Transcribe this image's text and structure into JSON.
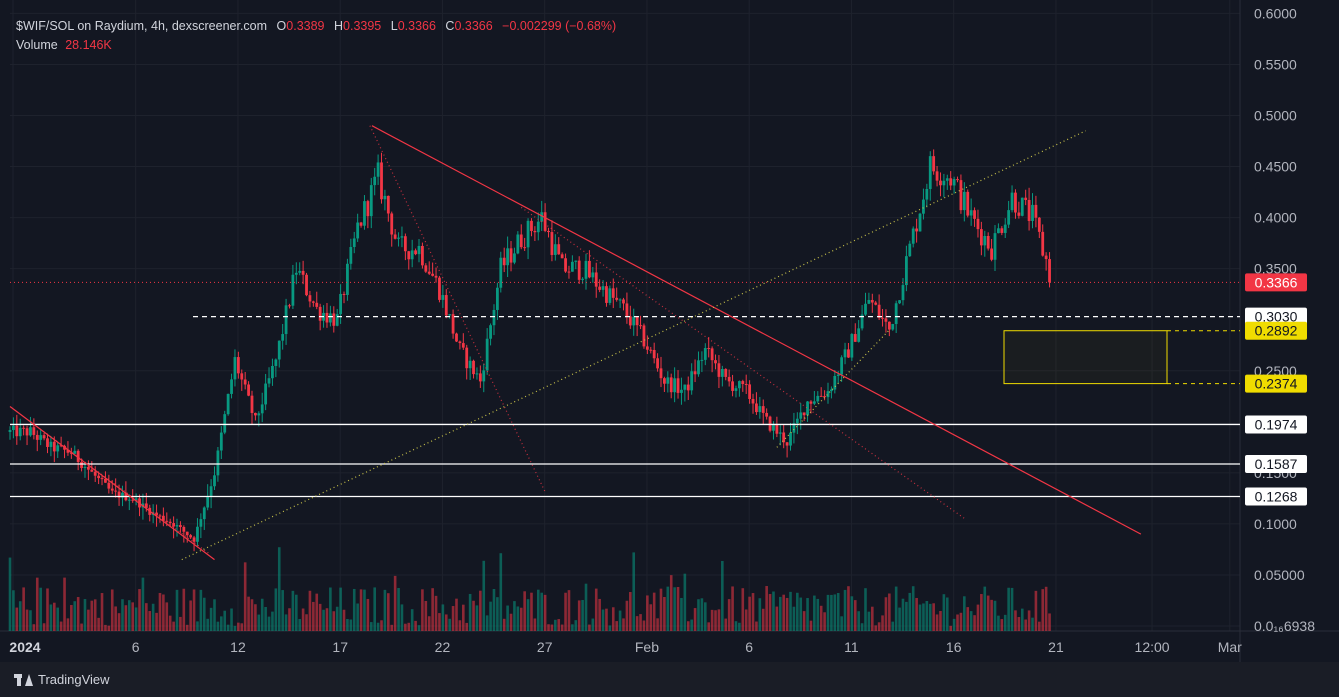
{
  "legend": {
    "symbol": "$WIF/SOL on Raydium, 4h, dexscreener.com",
    "open_label": "O",
    "open_value": "0.3389",
    "high_label": "H",
    "high_value": "0.3395",
    "low_label": "L",
    "low_value": "0.3366",
    "close_label": "C",
    "close_value": "0.3366",
    "change": "−0.002299 (−0.68%)",
    "volume_label": "Volume",
    "volume_value": "28.146K"
  },
  "footer": {
    "brand": "TradingView"
  },
  "colors": {
    "background": "#131722",
    "grid": "#1e222d",
    "up": "#089981",
    "down": "#f23645",
    "text": "#b2b5be",
    "trendline": "#f23645",
    "support_line": "#ffffff",
    "zone": "#f0dc00"
  },
  "chart_data": {
    "type": "candlestick",
    "title": "$WIF/SOL on Raydium, 4h, dexscreener.com",
    "ylim": [
      0.0,
      0.6
    ],
    "y_ticks": [
      "0.6000",
      "0.5500",
      "0.5000",
      "0.4500",
      "0.4000",
      "0.3500",
      "0.2500",
      "0.1500",
      "0.1000",
      "0.05000",
      "0.0₁₆6938"
    ],
    "x_ticks": [
      "2024",
      "6",
      "12",
      "17",
      "22",
      "27",
      "Feb",
      "6",
      "11",
      "16",
      "21",
      "12:00",
      "Mar"
    ],
    "price_path": [
      [
        1,
        0.19
      ],
      [
        2,
        0.175
      ],
      [
        3,
        0.17
      ],
      [
        4,
        0.15
      ],
      [
        5,
        0.13
      ],
      [
        6,
        0.125
      ],
      [
        7,
        0.11
      ],
      [
        8,
        0.1
      ],
      [
        9,
        0.085
      ],
      [
        10,
        0.15
      ],
      [
        11,
        0.26
      ],
      [
        12,
        0.2
      ],
      [
        13,
        0.26
      ],
      [
        14,
        0.35
      ],
      [
        15,
        0.31
      ],
      [
        16,
        0.3
      ],
      [
        17,
        0.39
      ],
      [
        18,
        0.44
      ],
      [
        19,
        0.37
      ],
      [
        20,
        0.37
      ],
      [
        21,
        0.33
      ],
      [
        22,
        0.27
      ],
      [
        23,
        0.24
      ],
      [
        24,
        0.35
      ],
      [
        25,
        0.38
      ],
      [
        26,
        0.4
      ],
      [
        27,
        0.35
      ],
      [
        28,
        0.35
      ],
      [
        29,
        0.33
      ],
      [
        30,
        0.31
      ],
      [
        31,
        0.28
      ],
      [
        32,
        0.24
      ],
      [
        33,
        0.23
      ],
      [
        34,
        0.27
      ],
      [
        35,
        0.24
      ],
      [
        36,
        0.23
      ],
      [
        37,
        0.2
      ],
      [
        38,
        0.18
      ],
      [
        39,
        0.22
      ],
      [
        40,
        0.23
      ],
      [
        41,
        0.27
      ],
      [
        42,
        0.32
      ],
      [
        43,
        0.29
      ],
      [
        44,
        0.37
      ],
      [
        45,
        0.45
      ],
      [
        46,
        0.44
      ],
      [
        47,
        0.4
      ],
      [
        48,
        0.37
      ],
      [
        49,
        0.42
      ],
      [
        50,
        0.4
      ],
      [
        51,
        0.3366
      ]
    ],
    "horizontal_levels": [
      {
        "price": 0.3366,
        "label": "0.3366",
        "style": "dotted-red"
      },
      {
        "price": 0.303,
        "label": "0.3030",
        "style": "dashed-white"
      },
      {
        "price": 0.2892,
        "label": "0.2892",
        "style": "zone-top"
      },
      {
        "price": 0.2374,
        "label": "0.2374",
        "style": "zone-bottom"
      },
      {
        "price": 0.1974,
        "label": "0.1974",
        "style": "solid-white"
      },
      {
        "price": 0.1587,
        "label": "0.1587",
        "style": "solid-white"
      },
      {
        "price": 0.1268,
        "label": "0.1268",
        "style": "solid-white"
      }
    ],
    "trendlines": [
      {
        "from": [
          0,
          0.215
        ],
        "to": [
          10,
          0.065
        ],
        "style": "solid-red"
      },
      {
        "from": [
          17.7,
          0.49
        ],
        "to": [
          55.3,
          0.09
        ],
        "style": "solid-red"
      },
      {
        "from": [
          17.6,
          0.49
        ],
        "to": [
          26.2,
          0.13
        ],
        "style": "dotted-red"
      },
      {
        "from": [
          25.0,
          0.41
        ],
        "to": [
          46.7,
          0.105
        ],
        "style": "dotted-red"
      },
      {
        "from": [
          1.0,
          0.2
        ],
        "to": [
          9.8,
          0.07
        ],
        "style": "dotted-red"
      },
      {
        "from": [
          8.4,
          0.065
        ],
        "to": [
          52.6,
          0.485
        ],
        "style": "dotted-yellow"
      },
      {
        "from": [
          37.5,
          0.175
        ],
        "to": [
          43.0,
          0.29
        ],
        "style": "dotted-yellow"
      }
    ],
    "zone": {
      "top": 0.2892,
      "bottom": 0.2374
    },
    "last_price": 0.3366
  }
}
